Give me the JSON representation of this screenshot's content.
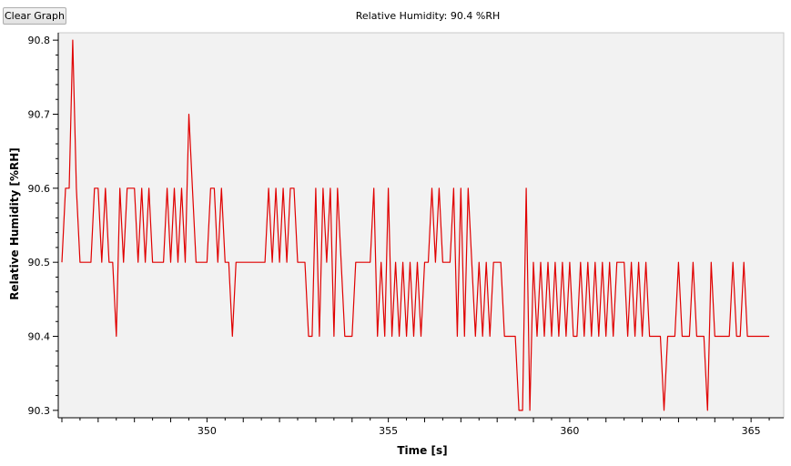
{
  "toolbar": {
    "clear_label": "Clear Graph"
  },
  "readout": {
    "text": "Relative Humidity: 90.4 %RH"
  },
  "colors": {
    "plot_bg": "#f2f2f2",
    "series": "#e00000",
    "axis": "#000000"
  },
  "chart_data": {
    "type": "line",
    "xlabel": "Time [s]",
    "ylabel": "Relative Humidity [%RH]",
    "xlim": [
      345.9,
      365.9
    ],
    "ylim": [
      90.29,
      90.81
    ],
    "x_ticks": [
      350,
      355,
      360,
      365
    ],
    "y_ticks": [
      90.3,
      90.4,
      90.5,
      90.6,
      90.7,
      90.8
    ],
    "grid": false,
    "legend": "none",
    "series": [
      {
        "values": [
          [
            346.0,
            90.5
          ],
          [
            346.1,
            90.6
          ],
          [
            346.2,
            90.6
          ],
          [
            346.3,
            90.8
          ],
          [
            346.4,
            90.6
          ],
          [
            346.5,
            90.5
          ],
          [
            346.6,
            90.5
          ],
          [
            346.7,
            90.5
          ],
          [
            346.8,
            90.5
          ],
          [
            346.9,
            90.6
          ],
          [
            347.0,
            90.6
          ],
          [
            347.1,
            90.5
          ],
          [
            347.2,
            90.6
          ],
          [
            347.3,
            90.5
          ],
          [
            347.4,
            90.5
          ],
          [
            347.5,
            90.4
          ],
          [
            347.6,
            90.6
          ],
          [
            347.7,
            90.5
          ],
          [
            347.8,
            90.6
          ],
          [
            347.9,
            90.6
          ],
          [
            348.0,
            90.6
          ],
          [
            348.1,
            90.5
          ],
          [
            348.2,
            90.6
          ],
          [
            348.3,
            90.5
          ],
          [
            348.4,
            90.6
          ],
          [
            348.5,
            90.5
          ],
          [
            348.6,
            90.5
          ],
          [
            348.7,
            90.5
          ],
          [
            348.8,
            90.5
          ],
          [
            348.9,
            90.6
          ],
          [
            349.0,
            90.5
          ],
          [
            349.1,
            90.6
          ],
          [
            349.2,
            90.5
          ],
          [
            349.3,
            90.6
          ],
          [
            349.4,
            90.5
          ],
          [
            349.5,
            90.7
          ],
          [
            349.6,
            90.6
          ],
          [
            349.7,
            90.5
          ],
          [
            349.8,
            90.5
          ],
          [
            349.9,
            90.5
          ],
          [
            350.0,
            90.5
          ],
          [
            350.1,
            90.6
          ],
          [
            350.2,
            90.6
          ],
          [
            350.3,
            90.5
          ],
          [
            350.4,
            90.6
          ],
          [
            350.5,
            90.5
          ],
          [
            350.6,
            90.5
          ],
          [
            350.7,
            90.4
          ],
          [
            350.8,
            90.5
          ],
          [
            350.9,
            90.5
          ],
          [
            351.0,
            90.5
          ],
          [
            351.1,
            90.5
          ],
          [
            351.2,
            90.5
          ],
          [
            351.3,
            90.5
          ],
          [
            351.4,
            90.5
          ],
          [
            351.5,
            90.5
          ],
          [
            351.6,
            90.5
          ],
          [
            351.7,
            90.6
          ],
          [
            351.8,
            90.5
          ],
          [
            351.9,
            90.6
          ],
          [
            352.0,
            90.5
          ],
          [
            352.1,
            90.6
          ],
          [
            352.2,
            90.5
          ],
          [
            352.3,
            90.6
          ],
          [
            352.4,
            90.6
          ],
          [
            352.5,
            90.5
          ],
          [
            352.6,
            90.5
          ],
          [
            352.7,
            90.5
          ],
          [
            352.8,
            90.4
          ],
          [
            352.9,
            90.4
          ],
          [
            353.0,
            90.6
          ],
          [
            353.1,
            90.4
          ],
          [
            353.2,
            90.6
          ],
          [
            353.3,
            90.5
          ],
          [
            353.4,
            90.6
          ],
          [
            353.5,
            90.4
          ],
          [
            353.6,
            90.6
          ],
          [
            353.7,
            90.5
          ],
          [
            353.8,
            90.4
          ],
          [
            353.9,
            90.4
          ],
          [
            354.0,
            90.4
          ],
          [
            354.1,
            90.5
          ],
          [
            354.2,
            90.5
          ],
          [
            354.3,
            90.5
          ],
          [
            354.4,
            90.5
          ],
          [
            354.5,
            90.5
          ],
          [
            354.6,
            90.6
          ],
          [
            354.7,
            90.4
          ],
          [
            354.8,
            90.5
          ],
          [
            354.9,
            90.4
          ],
          [
            355.0,
            90.6
          ],
          [
            355.1,
            90.4
          ],
          [
            355.2,
            90.5
          ],
          [
            355.3,
            90.4
          ],
          [
            355.4,
            90.5
          ],
          [
            355.5,
            90.4
          ],
          [
            355.6,
            90.5
          ],
          [
            355.7,
            90.4
          ],
          [
            355.8,
            90.5
          ],
          [
            355.9,
            90.4
          ],
          [
            356.0,
            90.5
          ],
          [
            356.1,
            90.5
          ],
          [
            356.2,
            90.6
          ],
          [
            356.3,
            90.5
          ],
          [
            356.4,
            90.6
          ],
          [
            356.5,
            90.5
          ],
          [
            356.6,
            90.5
          ],
          [
            356.7,
            90.5
          ],
          [
            356.8,
            90.6
          ],
          [
            356.9,
            90.4
          ],
          [
            357.0,
            90.6
          ],
          [
            357.1,
            90.4
          ],
          [
            357.2,
            90.6
          ],
          [
            357.3,
            90.5
          ],
          [
            357.4,
            90.4
          ],
          [
            357.5,
            90.5
          ],
          [
            357.6,
            90.4
          ],
          [
            357.7,
            90.5
          ],
          [
            357.8,
            90.4
          ],
          [
            357.9,
            90.5
          ],
          [
            358.0,
            90.5
          ],
          [
            358.1,
            90.5
          ],
          [
            358.2,
            90.4
          ],
          [
            358.3,
            90.4
          ],
          [
            358.4,
            90.4
          ],
          [
            358.5,
            90.4
          ],
          [
            358.6,
            90.3
          ],
          [
            358.7,
            90.3
          ],
          [
            358.8,
            90.6
          ],
          [
            358.9,
            90.3
          ],
          [
            359.0,
            90.5
          ],
          [
            359.1,
            90.4
          ],
          [
            359.2,
            90.5
          ],
          [
            359.3,
            90.4
          ],
          [
            359.4,
            90.5
          ],
          [
            359.5,
            90.4
          ],
          [
            359.6,
            90.5
          ],
          [
            359.7,
            90.4
          ],
          [
            359.8,
            90.5
          ],
          [
            359.9,
            90.4
          ],
          [
            360.0,
            90.5
          ],
          [
            360.1,
            90.4
          ],
          [
            360.2,
            90.4
          ],
          [
            360.3,
            90.5
          ],
          [
            360.4,
            90.4
          ],
          [
            360.5,
            90.5
          ],
          [
            360.6,
            90.4
          ],
          [
            360.7,
            90.5
          ],
          [
            360.8,
            90.4
          ],
          [
            360.9,
            90.5
          ],
          [
            361.0,
            90.4
          ],
          [
            361.1,
            90.5
          ],
          [
            361.2,
            90.4
          ],
          [
            361.3,
            90.5
          ],
          [
            361.4,
            90.5
          ],
          [
            361.5,
            90.5
          ],
          [
            361.6,
            90.4
          ],
          [
            361.7,
            90.5
          ],
          [
            361.8,
            90.4
          ],
          [
            361.9,
            90.5
          ],
          [
            362.0,
            90.4
          ],
          [
            362.1,
            90.5
          ],
          [
            362.2,
            90.4
          ],
          [
            362.3,
            90.4
          ],
          [
            362.4,
            90.4
          ],
          [
            362.5,
            90.4
          ],
          [
            362.6,
            90.3
          ],
          [
            362.7,
            90.4
          ],
          [
            362.8,
            90.4
          ],
          [
            362.9,
            90.4
          ],
          [
            363.0,
            90.5
          ],
          [
            363.1,
            90.4
          ],
          [
            363.2,
            90.4
          ],
          [
            363.3,
            90.4
          ],
          [
            363.4,
            90.5
          ],
          [
            363.5,
            90.4
          ],
          [
            363.6,
            90.4
          ],
          [
            363.7,
            90.4
          ],
          [
            363.8,
            90.3
          ],
          [
            363.9,
            90.5
          ],
          [
            364.0,
            90.4
          ],
          [
            364.1,
            90.4
          ],
          [
            364.2,
            90.4
          ],
          [
            364.3,
            90.4
          ],
          [
            364.4,
            90.4
          ],
          [
            364.5,
            90.5
          ],
          [
            364.6,
            90.4
          ],
          [
            364.7,
            90.4
          ],
          [
            364.8,
            90.5
          ],
          [
            364.9,
            90.4
          ],
          [
            365.0,
            90.4
          ],
          [
            365.1,
            90.4
          ],
          [
            365.2,
            90.4
          ],
          [
            365.3,
            90.4
          ],
          [
            365.4,
            90.4
          ],
          [
            365.5,
            90.4
          ]
        ]
      }
    ]
  }
}
